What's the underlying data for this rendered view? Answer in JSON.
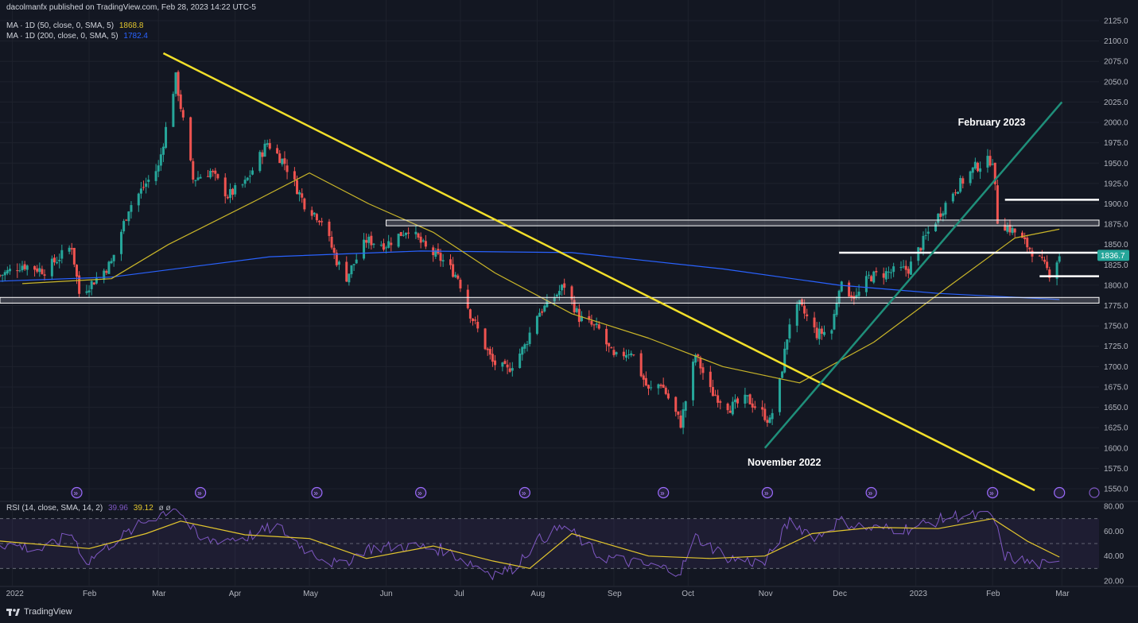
{
  "header": {
    "published": "dacolmanfx published on TradingView.com, Feb 28, 2023 14:22 UTC-5",
    "ma50_label": "MA · 1D (50, close, 0, SMA, 5)",
    "ma50_value": "1868.8",
    "ma200_label": "MA · 1D (200, close, 0, SMA, 5)",
    "ma200_value": "1782.4",
    "rsi_label": "RSI (14, close, SMA, 14, 2)",
    "rsi_value": "39.96",
    "rsi_ma_value": "39.12",
    "rsi_extra": "ø  ø"
  },
  "footer": {
    "brand": "TradingView"
  },
  "colors": {
    "background": "#131722",
    "up": "#26a69a",
    "down": "#ef5350",
    "ma50": "#c9b529",
    "ma200": "#2962ff",
    "trendline_down": "#f2e02a",
    "trendline_up": "#1f8f7a",
    "rsi": "#7e57c2",
    "rsi_ma": "#e3c62e"
  },
  "chart_data": {
    "type": "candlestick",
    "instrument": "Gold (XAU/USD) daily",
    "price_axis": {
      "ticks": [
        2125,
        2100,
        2075,
        2050,
        2025,
        2000,
        1975,
        1950,
        1925,
        1900,
        1875,
        1850,
        1825,
        1800,
        1775,
        1750,
        1725,
        1700,
        1675,
        1650,
        1625,
        1600,
        1575,
        1550
      ],
      "ylim": [
        1540,
        2135
      ],
      "last_price": "1836.7"
    },
    "time_axis": {
      "labels": [
        {
          "t": "2022-01-01",
          "label": "2022"
        },
        {
          "t": "2022-02-01",
          "label": "Feb"
        },
        {
          "t": "2022-03-01",
          "label": "Mar"
        },
        {
          "t": "2022-04-01",
          "label": "Apr"
        },
        {
          "t": "2022-05-01",
          "label": "May"
        },
        {
          "t": "2022-06-01",
          "label": "Jun"
        },
        {
          "t": "2022-07-01",
          "label": "Jul"
        },
        {
          "t": "2022-08-01",
          "label": "Aug"
        },
        {
          "t": "2022-09-01",
          "label": "Sep"
        },
        {
          "t": "2022-10-01",
          "label": "Oct"
        },
        {
          "t": "2022-11-01",
          "label": "Nov"
        },
        {
          "t": "2022-12-01",
          "label": "Dec"
        },
        {
          "t": "2023-01-01",
          "label": "2023"
        },
        {
          "t": "2023-02-01",
          "label": "Feb"
        },
        {
          "t": "2023-03-01",
          "label": "Mar"
        }
      ]
    },
    "price_path": [
      [
        "2021-12-27",
        1812
      ],
      [
        "2022-01-05",
        1825
      ],
      [
        "2022-01-14",
        1818
      ],
      [
        "2022-01-25",
        1848
      ],
      [
        "2022-01-28",
        1790
      ],
      [
        "2022-02-04",
        1808
      ],
      [
        "2022-02-10",
        1828
      ],
      [
        "2022-02-17",
        1895
      ],
      [
        "2022-02-24",
        1925
      ],
      [
        "2022-03-01",
        1945
      ],
      [
        "2022-03-08",
        2055
      ],
      [
        "2022-03-15",
        1930
      ],
      [
        "2022-03-22",
        1940
      ],
      [
        "2022-03-29",
        1910
      ],
      [
        "2022-04-05",
        1925
      ],
      [
        "2022-04-14",
        1975
      ],
      [
        "2022-04-21",
        1950
      ],
      [
        "2022-04-29",
        1900
      ],
      [
        "2022-05-06",
        1880
      ],
      [
        "2022-05-12",
        1830
      ],
      [
        "2022-05-16",
        1810
      ],
      [
        "2022-05-24",
        1855
      ],
      [
        "2022-06-01",
        1850
      ],
      [
        "2022-06-10",
        1870
      ],
      [
        "2022-06-17",
        1845
      ],
      [
        "2022-06-24",
        1830
      ],
      [
        "2022-06-30",
        1810
      ],
      [
        "2022-07-05",
        1765
      ],
      [
        "2022-07-14",
        1705
      ],
      [
        "2022-07-20",
        1695
      ],
      [
        "2022-07-27",
        1725
      ],
      [
        "2022-08-01",
        1765
      ],
      [
        "2022-08-05",
        1775
      ],
      [
        "2022-08-12",
        1800
      ],
      [
        "2022-08-18",
        1760
      ],
      [
        "2022-08-26",
        1745
      ],
      [
        "2022-09-01",
        1710
      ],
      [
        "2022-09-08",
        1720
      ],
      [
        "2022-09-15",
        1670
      ],
      [
        "2022-09-20",
        1680
      ],
      [
        "2022-09-28",
        1630
      ],
      [
        "2022-10-04",
        1715
      ],
      [
        "2022-10-10",
        1670
      ],
      [
        "2022-10-18",
        1650
      ],
      [
        "2022-10-25",
        1660
      ],
      [
        "2022-11-01",
        1640
      ],
      [
        "2022-11-03",
        1632
      ],
      [
        "2022-11-07",
        1680
      ],
      [
        "2022-11-11",
        1755
      ],
      [
        "2022-11-15",
        1775
      ],
      [
        "2022-11-22",
        1740
      ],
      [
        "2022-11-28",
        1745
      ],
      [
        "2022-12-01",
        1800
      ],
      [
        "2022-12-08",
        1785
      ],
      [
        "2022-12-13",
        1810
      ],
      [
        "2022-12-20",
        1815
      ],
      [
        "2022-12-29",
        1820
      ],
      [
        "2023-01-06",
        1865
      ],
      [
        "2023-01-16",
        1915
      ],
      [
        "2023-01-25",
        1945
      ],
      [
        "2023-02-01",
        1955
      ],
      [
        "2023-02-03",
        1880
      ],
      [
        "2023-02-10",
        1865
      ],
      [
        "2023-02-17",
        1842
      ],
      [
        "2023-02-24",
        1815
      ],
      [
        "2023-02-28",
        1836.7
      ]
    ],
    "ma50": [
      [
        "2022-01-05",
        1802
      ],
      [
        "2022-02-10",
        1808
      ],
      [
        "2022-03-05",
        1850
      ],
      [
        "2022-04-10",
        1905
      ],
      [
        "2022-05-01",
        1938
      ],
      [
        "2022-05-25",
        1900
      ],
      [
        "2022-06-20",
        1865
      ],
      [
        "2022-07-15",
        1815
      ],
      [
        "2022-08-15",
        1765
      ],
      [
        "2022-09-15",
        1735
      ],
      [
        "2022-10-15",
        1700
      ],
      [
        "2022-11-15",
        1680
      ],
      [
        "2022-12-15",
        1730
      ],
      [
        "2023-01-15",
        1800
      ],
      [
        "2023-02-10",
        1858
      ],
      [
        "2023-02-28",
        1868.8
      ]
    ],
    "ma200": [
      [
        "2021-12-27",
        1805
      ],
      [
        "2022-02-10",
        1810
      ],
      [
        "2022-04-15",
        1835
      ],
      [
        "2022-06-15",
        1842
      ],
      [
        "2022-08-15",
        1840
      ],
      [
        "2022-10-15",
        1820
      ],
      [
        "2022-12-01",
        1800
      ],
      [
        "2023-01-10",
        1790
      ],
      [
        "2023-02-28",
        1782.4
      ]
    ],
    "rsi": {
      "ylim": [
        15,
        85
      ],
      "ticks": [
        80,
        60,
        40,
        20
      ],
      "bands": [
        70,
        50,
        30
      ],
      "rsi_path": [
        [
          "2021-12-27",
          50
        ],
        [
          "2022-01-14",
          45
        ],
        [
          "2022-01-25",
          58
        ],
        [
          "2022-01-31",
          35
        ],
        [
          "2022-02-10",
          50
        ],
        [
          "2022-02-24",
          68
        ],
        [
          "2022-03-08",
          80
        ],
        [
          "2022-03-18",
          52
        ],
        [
          "2022-04-05",
          55
        ],
        [
          "2022-04-18",
          64
        ],
        [
          "2022-04-29",
          46
        ],
        [
          "2022-05-13",
          32
        ],
        [
          "2022-05-24",
          46
        ],
        [
          "2022-06-10",
          48
        ],
        [
          "2022-06-24",
          45
        ],
        [
          "2022-07-14",
          26
        ],
        [
          "2022-07-22",
          30
        ],
        [
          "2022-08-01",
          52
        ],
        [
          "2022-08-12",
          64
        ],
        [
          "2022-08-26",
          40
        ],
        [
          "2022-09-15",
          32
        ],
        [
          "2022-09-28",
          28
        ],
        [
          "2022-10-04",
          55
        ],
        [
          "2022-10-18",
          38
        ],
        [
          "2022-11-01",
          34
        ],
        [
          "2022-11-11",
          68
        ],
        [
          "2022-11-22",
          55
        ],
        [
          "2022-12-01",
          68
        ],
        [
          "2022-12-13",
          62
        ],
        [
          "2022-12-29",
          62
        ],
        [
          "2023-01-16",
          72
        ],
        [
          "2023-02-01",
          72
        ],
        [
          "2023-02-06",
          40
        ],
        [
          "2023-02-17",
          34
        ],
        [
          "2023-02-24",
          32
        ],
        [
          "2023-02-28",
          39.96
        ]
      ],
      "rsi_ma_path": [
        [
          "2021-12-27",
          52
        ],
        [
          "2022-02-01",
          46
        ],
        [
          "2022-02-24",
          58
        ],
        [
          "2022-03-10",
          68
        ],
        [
          "2022-04-05",
          57
        ],
        [
          "2022-05-01",
          54
        ],
        [
          "2022-05-24",
          38
        ],
        [
          "2022-06-20",
          48
        ],
        [
          "2022-07-14",
          36
        ],
        [
          "2022-07-29",
          30
        ],
        [
          "2022-08-15",
          58
        ],
        [
          "2022-09-15",
          40
        ],
        [
          "2022-10-10",
          38
        ],
        [
          "2022-11-01",
          40
        ],
        [
          "2022-11-20",
          58
        ],
        [
          "2022-12-15",
          63
        ],
        [
          "2023-01-10",
          62
        ],
        [
          "2023-02-01",
          70
        ],
        [
          "2023-02-15",
          52
        ],
        [
          "2023-02-28",
          39.12
        ]
      ]
    },
    "annotations": [
      {
        "text": "February 2023",
        "t": "2023-01-27",
        "price": 2000
      },
      {
        "text": "November 2022",
        "t": "2022-11-03",
        "price": 1582
      }
    ],
    "drawings": {
      "downtrend": [
        [
          "2022-03-03",
          2085
        ],
        [
          "2023-02-18",
          1548
        ]
      ],
      "uptrend": [
        [
          "2022-11-01",
          1600
        ],
        [
          "2023-03-01",
          2025
        ]
      ],
      "zones": [
        {
          "t0": "2021-12-27",
          "t1": "2023-03-16",
          "p_high": 1785,
          "p_low": 1778
        },
        {
          "t0": "2022-06-01",
          "t1": "2023-03-16",
          "p_high": 1880,
          "p_low": 1873
        }
      ],
      "levels": [
        {
          "t0": "2022-12-01",
          "t1": "2023-03-16",
          "price": 1840
        },
        {
          "t0": "2023-02-06",
          "t1": "2023-03-16",
          "price": 1905
        },
        {
          "t0": "2023-02-20",
          "t1": "2023-03-16",
          "price": 1811
        }
      ]
    }
  }
}
